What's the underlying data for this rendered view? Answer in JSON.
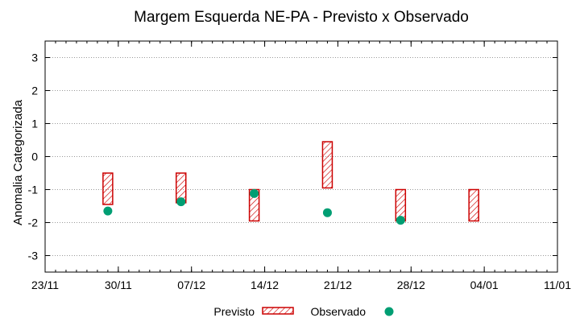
{
  "chart_data": {
    "type": "range-scatter",
    "title": "Margem Esquerda NE-PA - Previsto x Observado",
    "xlabel": "",
    "ylabel": "Anomalia Categorizada",
    "xlim": [
      "2026-11-23",
      "2027-01-11"
    ],
    "ylim": [
      -3.5,
      3.5
    ],
    "x_ticks": [
      {
        "date": "2026-11-23",
        "label": "23/11"
      },
      {
        "date": "2026-11-30",
        "label": "30/11"
      },
      {
        "date": "2026-12-07",
        "label": "07/12"
      },
      {
        "date": "2026-12-14",
        "label": "14/12"
      },
      {
        "date": "2026-12-21",
        "label": "21/12"
      },
      {
        "date": "2026-12-28",
        "label": "28/12"
      },
      {
        "date": "2027-01-04",
        "label": "04/01"
      },
      {
        "date": "2027-01-11",
        "label": "11/01"
      }
    ],
    "y_ticks": [
      -3,
      -2,
      -1,
      0,
      1,
      2,
      3
    ],
    "grid": "horizontal-dotted",
    "legend_position": "bottom",
    "series": [
      {
        "name": "Previsto",
        "kind": "range-box",
        "color": "#cc0000",
        "points": [
          {
            "x": "2026-11-29",
            "low": -1.45,
            "high": -0.5
          },
          {
            "x": "2026-12-06",
            "low": -1.4,
            "high": -0.5
          },
          {
            "x": "2026-12-13",
            "low": -1.95,
            "high": -1.0
          },
          {
            "x": "2026-12-20",
            "low": -0.95,
            "high": 0.45
          },
          {
            "x": "2026-12-27",
            "low": -1.95,
            "high": -1.0
          },
          {
            "x": "2027-01-03",
            "low": -1.95,
            "high": -1.0
          }
        ]
      },
      {
        "name": "Observado",
        "kind": "point",
        "color": "#009e73",
        "points": [
          {
            "x": "2026-11-29",
            "y": -1.65
          },
          {
            "x": "2026-12-06",
            "y": -1.37
          },
          {
            "x": "2026-12-13",
            "y": -1.12
          },
          {
            "x": "2026-12-20",
            "y": -1.7
          },
          {
            "x": "2026-12-27",
            "y": -1.93
          }
        ]
      }
    ]
  }
}
